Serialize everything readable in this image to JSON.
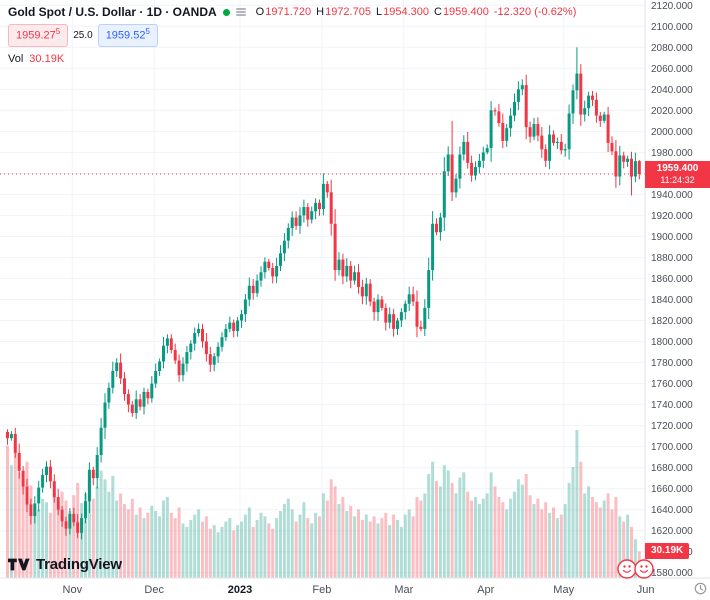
{
  "header": {
    "symbol_title": "Gold Spot / U.S. Dollar · 1D · OANDA",
    "ohlc": {
      "o_label": "O",
      "o": "1971.720",
      "h_label": "H",
      "h": "1972.705",
      "l_label": "L",
      "l": "1954.300",
      "c_label": "C",
      "c": "1959.400",
      "change": "-12.320 (-0.62%)"
    },
    "bid": {
      "main": "1959.27",
      "sup": "5"
    },
    "spread": "25.0",
    "ask": {
      "main": "1959.52",
      "sup": "5"
    },
    "vol_label": "Vol",
    "vol_value": "30.19K"
  },
  "axis": {
    "price_label": "1959.400",
    "countdown": "11:24:32",
    "volume_label": "30.19K"
  },
  "footer": {
    "logo_text": "TradingView"
  },
  "chart_data": {
    "type": "candlestick",
    "title": "Gold Spot / U.S. Dollar",
    "interval": "1D",
    "exchange": "OANDA",
    "legend_position": "top-left",
    "grid": true,
    "ylim": [
      1575,
      2125
    ],
    "y_ticks": [
      1580,
      1600,
      1620,
      1640,
      1660,
      1680,
      1700,
      1720,
      1740,
      1760,
      1780,
      1800,
      1820,
      1840,
      1860,
      1880,
      1900,
      1920,
      1940,
      1960,
      1980,
      2000,
      2020,
      2040,
      2060,
      2080,
      2100,
      2120
    ],
    "x_ticks": [
      {
        "label": "Nov",
        "i": 17
      },
      {
        "label": "Dec",
        "i": 38
      },
      {
        "label": "2023",
        "i": 60,
        "bold": true
      },
      {
        "label": "Feb",
        "i": 81
      },
      {
        "label": "Mar",
        "i": 102
      },
      {
        "label": "Apr",
        "i": 123
      },
      {
        "label": "May",
        "i": 143
      },
      {
        "label": "Jun",
        "i": 164
      }
    ],
    "current_price": 1959.4,
    "last": {
      "open": 1971.72,
      "high": 1972.705,
      "low": 1954.3,
      "close": 1959.4,
      "change": -12.32,
      "change_pct": -0.62
    },
    "closes": [
      1708,
      1712,
      1694,
      1677,
      1662,
      1645,
      1634,
      1646,
      1661,
      1673,
      1681,
      1667,
      1652,
      1640,
      1629,
      1622,
      1636,
      1628,
      1618,
      1632,
      1648,
      1678,
      1670,
      1692,
      1718,
      1742,
      1756,
      1772,
      1780,
      1765,
      1750,
      1740,
      1732,
      1745,
      1738,
      1752,
      1746,
      1760,
      1772,
      1781,
      1796,
      1803,
      1792,
      1782,
      1768,
      1779,
      1790,
      1798,
      1808,
      1812,
      1800,
      1788,
      1778,
      1786,
      1795,
      1804,
      1812,
      1818,
      1810,
      1820,
      1826,
      1840,
      1853,
      1846,
      1858,
      1866,
      1876,
      1870,
      1862,
      1872,
      1884,
      1896,
      1908,
      1918,
      1910,
      1920,
      1928,
      1916,
      1924,
      1932,
      1926,
      1950,
      1942,
      1912,
      1868,
      1878,
      1862,
      1872,
      1858,
      1866,
      1852,
      1843,
      1855,
      1838,
      1828,
      1840,
      1832,
      1818,
      1826,
      1812,
      1820,
      1828,
      1836,
      1845,
      1838,
      1814,
      1812,
      1832,
      1868,
      1912,
      1904,
      1918,
      1962,
      1978,
      1942,
      1955,
      1978,
      1990,
      1970,
      1958,
      1966,
      1972,
      1980,
      1984,
      2020,
      2019,
      2008,
      1991,
      2003,
      2015,
      2028,
      2040,
      2044,
      2004,
      1995,
      2007,
      1996,
      1983,
      1972,
      1997,
      1989,
      1990,
      1982,
      1983,
      2017,
      2039,
      2055,
      2016,
      2022,
      2034,
      2030,
      2015,
      2010,
      2016,
      1989,
      1981,
      1957,
      1977,
      1971,
      1974,
      1957,
      1971.7,
      1959.4
    ],
    "volumes_k": [
      150,
      128,
      142,
      120,
      110,
      132,
      105,
      84,
      78,
      90,
      86,
      74,
      92,
      83,
      98,
      88,
      76,
      94,
      108,
      85,
      96,
      118,
      90,
      104,
      122,
      112,
      98,
      116,
      88,
      96,
      84,
      78,
      90,
      72,
      80,
      68,
      74,
      82,
      76,
      70,
      88,
      92,
      74,
      68,
      80,
      62,
      58,
      66,
      72,
      78,
      64,
      70,
      56,
      60,
      52,
      58,
      64,
      68,
      54,
      60,
      64,
      72,
      80,
      58,
      66,
      74,
      70,
      62,
      56,
      68,
      76,
      84,
      90,
      78,
      64,
      72,
      86,
      68,
      62,
      74,
      70,
      96,
      88,
      112,
      104,
      84,
      92,
      76,
      82,
      70,
      78,
      66,
      72,
      64,
      70,
      62,
      68,
      74,
      60,
      72,
      66,
      58,
      72,
      78,
      70,
      92,
      88,
      96,
      118,
      132,
      110,
      104,
      128,
      122,
      108,
      96,
      114,
      120,
      98,
      88,
      92,
      84,
      90,
      96,
      120,
      104,
      92,
      86,
      78,
      90,
      98,
      112,
      106,
      118,
      94,
      84,
      90,
      78,
      86,
      74,
      80,
      68,
      72,
      84,
      108,
      126,
      168,
      132,
      96,
      104,
      92,
      86,
      80,
      88,
      96,
      78,
      92,
      70,
      64,
      72,
      58,
      44,
      30.19
    ],
    "wick_overrides": {
      "18": {
        "low": 1613
      },
      "81": {
        "high": 1960
      },
      "105": {
        "low": 1804
      },
      "114": {
        "high": 2010
      },
      "146": {
        "high": 2080
      },
      "160": {
        "low": 1939
      }
    },
    "colors": {
      "up": "#089981",
      "down": "#f23645",
      "vol_up": "rgba(8,153,129,0.32)",
      "vol_down": "rgba(242,54,69,0.32)",
      "grid": "#f0f3fa",
      "axis_text": "#4a4f5a"
    }
  }
}
